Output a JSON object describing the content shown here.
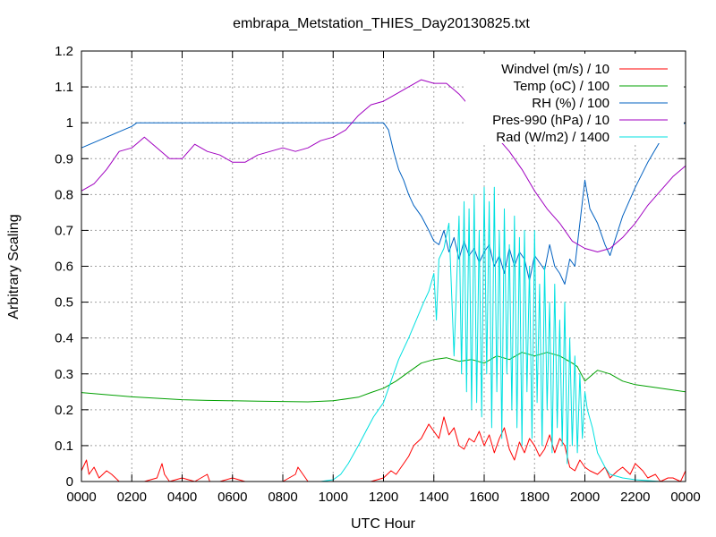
{
  "chart_data": {
    "type": "line",
    "title": "embrapa_Metstation_THIES_Day20130825.txt",
    "xlabel": "UTC Hour",
    "ylabel": "Arbitrary Scaling",
    "xlim": [
      0,
      24
    ],
    "ylim": [
      0,
      1.2
    ],
    "grid": true,
    "legend_position": "top-right",
    "x_ticks": [
      {
        "value": 0,
        "label": "0000"
      },
      {
        "value": 2,
        "label": "0200"
      },
      {
        "value": 4,
        "label": "0400"
      },
      {
        "value": 6,
        "label": "0600"
      },
      {
        "value": 8,
        "label": "0800"
      },
      {
        "value": 10,
        "label": "1000"
      },
      {
        "value": 12,
        "label": "1200"
      },
      {
        "value": 14,
        "label": "1400"
      },
      {
        "value": 16,
        "label": "1600"
      },
      {
        "value": 18,
        "label": "1800"
      },
      {
        "value": 20,
        "label": "2000"
      },
      {
        "value": 22,
        "label": "2200"
      },
      {
        "value": 24,
        "label": "0000"
      }
    ],
    "y_ticks": [
      {
        "value": 0,
        "label": "0"
      },
      {
        "value": 0.1,
        "label": "0.1"
      },
      {
        "value": 0.2,
        "label": "0.2"
      },
      {
        "value": 0.3,
        "label": "0.3"
      },
      {
        "value": 0.4,
        "label": "0.4"
      },
      {
        "value": 0.5,
        "label": "0.5"
      },
      {
        "value": 0.6,
        "label": "0.6"
      },
      {
        "value": 0.7,
        "label": "0.7"
      },
      {
        "value": 0.8,
        "label": "0.8"
      },
      {
        "value": 0.9,
        "label": "0.9"
      },
      {
        "value": 1.0,
        "label": "1"
      },
      {
        "value": 1.1,
        "label": "1.1"
      },
      {
        "value": 1.2,
        "label": "1.2"
      }
    ],
    "series": [
      {
        "name": "Windvel (m/s) / 10",
        "color": "#ff0000",
        "x": [
          0,
          0.2,
          0.3,
          0.5,
          0.7,
          1.0,
          1.2,
          1.5,
          2.0,
          2.5,
          3.0,
          3.2,
          3.3,
          3.5,
          4.0,
          4.5,
          5.0,
          5.1,
          5.5,
          6.0,
          6.5,
          7.0,
          7.5,
          8.0,
          8.5,
          8.6,
          9.0,
          9.5,
          10.0,
          10.5,
          11.0,
          11.5,
          12.0,
          12.3,
          12.5,
          12.8,
          13.0,
          13.2,
          13.5,
          13.8,
          14.0,
          14.2,
          14.4,
          14.6,
          14.8,
          15.0,
          15.2,
          15.4,
          15.6,
          15.8,
          16.0,
          16.2,
          16.4,
          16.6,
          16.8,
          17.0,
          17.2,
          17.4,
          17.6,
          17.8,
          18.0,
          18.2,
          18.4,
          18.6,
          18.8,
          19.0,
          19.2,
          19.4,
          19.6,
          19.8,
          20.0,
          20.2,
          20.5,
          20.8,
          21.0,
          21.3,
          21.5,
          21.8,
          22.0,
          22.3,
          22.5,
          22.8,
          23.0,
          23.3,
          23.5,
          23.8,
          24.0
        ],
        "y": [
          0.03,
          0.06,
          0.02,
          0.04,
          0.01,
          0.03,
          0.02,
          0.0,
          0.0,
          0.0,
          0.01,
          0.05,
          0.02,
          0.0,
          0.01,
          0.0,
          0.02,
          0.0,
          0.0,
          0.01,
          0.0,
          0.0,
          0.0,
          0.0,
          0.02,
          0.04,
          0.0,
          0.0,
          0.0,
          0.0,
          0.0,
          0.0,
          0.01,
          0.03,
          0.02,
          0.05,
          0.07,
          0.1,
          0.12,
          0.16,
          0.14,
          0.12,
          0.18,
          0.13,
          0.15,
          0.1,
          0.09,
          0.12,
          0.11,
          0.14,
          0.1,
          0.13,
          0.08,
          0.12,
          0.15,
          0.09,
          0.06,
          0.11,
          0.08,
          0.12,
          0.1,
          0.07,
          0.09,
          0.13,
          0.08,
          0.12,
          0.1,
          0.04,
          0.03,
          0.06,
          0.04,
          0.03,
          0.02,
          0.04,
          0.01,
          0.03,
          0.04,
          0.02,
          0.05,
          0.03,
          0.01,
          0.02,
          0.0,
          0.01,
          0.01,
          0.0,
          0.03
        ]
      },
      {
        "name": "Temp (oC) / 100",
        "color": "#00a000",
        "x": [
          0,
          1,
          2,
          3,
          4,
          5,
          6,
          7,
          8,
          9,
          10,
          11,
          11.5,
          12,
          12.5,
          13,
          13.5,
          14,
          14.5,
          15,
          15.5,
          16,
          16.5,
          17,
          17.5,
          18,
          18.5,
          19,
          19.5,
          19.7,
          20,
          20.5,
          21,
          21.5,
          22,
          23,
          24
        ],
        "y": [
          0.248,
          0.242,
          0.236,
          0.232,
          0.228,
          0.226,
          0.225,
          0.224,
          0.223,
          0.222,
          0.225,
          0.235,
          0.248,
          0.26,
          0.28,
          0.305,
          0.33,
          0.34,
          0.345,
          0.335,
          0.34,
          0.33,
          0.35,
          0.34,
          0.36,
          0.35,
          0.36,
          0.35,
          0.33,
          0.32,
          0.28,
          0.31,
          0.3,
          0.28,
          0.27,
          0.26,
          0.25
        ]
      },
      {
        "name": "RH (%) / 100",
        "color": "#0060c0",
        "x": [
          0,
          0.5,
          1,
          1.5,
          2,
          2.2,
          3,
          4,
          5,
          6,
          7,
          8,
          9,
          10,
          11,
          11.5,
          12,
          12.2,
          12.4,
          12.6,
          12.8,
          13,
          13.2,
          13.5,
          13.8,
          14,
          14.2,
          14.4,
          14.6,
          14.8,
          15,
          15.2,
          15.4,
          15.6,
          15.8,
          16,
          16.2,
          16.4,
          16.6,
          16.8,
          17,
          17.2,
          17.4,
          17.6,
          17.8,
          18,
          18.2,
          18.4,
          18.6,
          18.8,
          19,
          19.2,
          19.4,
          19.6,
          19.8,
          20,
          20.2,
          20.5,
          20.8,
          21,
          21.5,
          22,
          22.5,
          23,
          23.5,
          24
        ],
        "y": [
          0.93,
          0.945,
          0.96,
          0.975,
          0.99,
          1.0,
          1.0,
          1.0,
          1.0,
          1.0,
          1.0,
          1.0,
          1.0,
          1.0,
          1.0,
          1.0,
          1.0,
          0.98,
          0.92,
          0.87,
          0.84,
          0.8,
          0.77,
          0.74,
          0.7,
          0.67,
          0.66,
          0.7,
          0.64,
          0.68,
          0.62,
          0.67,
          0.63,
          0.65,
          0.61,
          0.64,
          0.66,
          0.6,
          0.63,
          0.58,
          0.65,
          0.6,
          0.64,
          0.62,
          0.56,
          0.63,
          0.61,
          0.59,
          0.66,
          0.6,
          0.58,
          0.55,
          0.62,
          0.6,
          0.72,
          0.84,
          0.76,
          0.72,
          0.66,
          0.63,
          0.74,
          0.82,
          0.89,
          0.95,
          0.98,
          1.0
        ]
      },
      {
        "name": "Pres-990 (hPa) / 10",
        "color": "#a000c0",
        "x": [
          0,
          0.5,
          1,
          1.5,
          2,
          2.5,
          3,
          3.5,
          4,
          4.5,
          5,
          5.5,
          6,
          6.5,
          7,
          7.5,
          8,
          8.5,
          9,
          9.5,
          10,
          10.5,
          11,
          11.5,
          12,
          12.5,
          13,
          13.5,
          14,
          14.5,
          15,
          15.5,
          16,
          16.5,
          17,
          17.5,
          18,
          18.5,
          19,
          19.5,
          20,
          20.5,
          21,
          21.5,
          22,
          22.5,
          23,
          23.5,
          24
        ],
        "y": [
          0.81,
          0.83,
          0.87,
          0.92,
          0.93,
          0.96,
          0.93,
          0.9,
          0.9,
          0.94,
          0.92,
          0.91,
          0.89,
          0.89,
          0.91,
          0.92,
          0.93,
          0.92,
          0.93,
          0.95,
          0.96,
          0.98,
          1.02,
          1.05,
          1.06,
          1.08,
          1.1,
          1.12,
          1.11,
          1.11,
          1.08,
          1.04,
          1.0,
          0.96,
          0.92,
          0.87,
          0.81,
          0.76,
          0.72,
          0.67,
          0.65,
          0.64,
          0.65,
          0.68,
          0.72,
          0.77,
          0.81,
          0.85,
          0.88
        ]
      },
      {
        "name": "Rad (W/m2) / 1400",
        "color": "#00e0e0",
        "x": [
          0,
          2,
          4,
          6,
          8,
          9.5,
          10,
          10.3,
          10.6,
          11,
          11.3,
          11.6,
          12,
          12.3,
          12.6,
          13,
          13.3,
          13.6,
          13.8,
          14,
          14.1,
          14.2,
          14.4,
          14.6,
          14.8,
          15,
          15.1,
          15.2,
          15.3,
          15.4,
          15.5,
          15.6,
          15.7,
          15.8,
          15.9,
          16,
          16.1,
          16.2,
          16.3,
          16.4,
          16.5,
          16.6,
          16.7,
          16.8,
          16.9,
          17,
          17.1,
          17.2,
          17.3,
          17.4,
          17.5,
          17.6,
          17.7,
          17.8,
          17.9,
          18,
          18.1,
          18.2,
          18.3,
          18.4,
          18.5,
          18.6,
          18.7,
          18.8,
          18.9,
          19,
          19.1,
          19.2,
          19.3,
          19.4,
          19.5,
          19.6,
          19.7,
          19.8,
          19.9,
          20,
          20.1,
          20.3,
          20.5,
          20.8,
          21,
          21.5,
          22,
          23,
          24
        ],
        "y": [
          0,
          0,
          0,
          0,
          0,
          0,
          0.005,
          0.02,
          0.05,
          0.1,
          0.14,
          0.18,
          0.22,
          0.28,
          0.34,
          0.4,
          0.45,
          0.5,
          0.53,
          0.58,
          0.45,
          0.62,
          0.65,
          0.72,
          0.35,
          0.74,
          0.3,
          0.78,
          0.25,
          0.76,
          0.2,
          0.8,
          0.22,
          0.7,
          0.18,
          0.82,
          0.3,
          0.78,
          0.15,
          0.82,
          0.25,
          0.7,
          0.12,
          0.76,
          0.3,
          0.66,
          0.2,
          0.74,
          0.15,
          0.68,
          0.1,
          0.7,
          0.25,
          0.6,
          0.12,
          0.7,
          0.22,
          0.55,
          0.1,
          0.6,
          0.2,
          0.5,
          0.08,
          0.55,
          0.15,
          0.45,
          0.1,
          0.5,
          0.05,
          0.4,
          0.1,
          0.35,
          0.08,
          0.3,
          0.12,
          0.25,
          0.2,
          0.15,
          0.08,
          0.04,
          0.02,
          0.01,
          0.005,
          0.0,
          0.0
        ]
      }
    ]
  }
}
